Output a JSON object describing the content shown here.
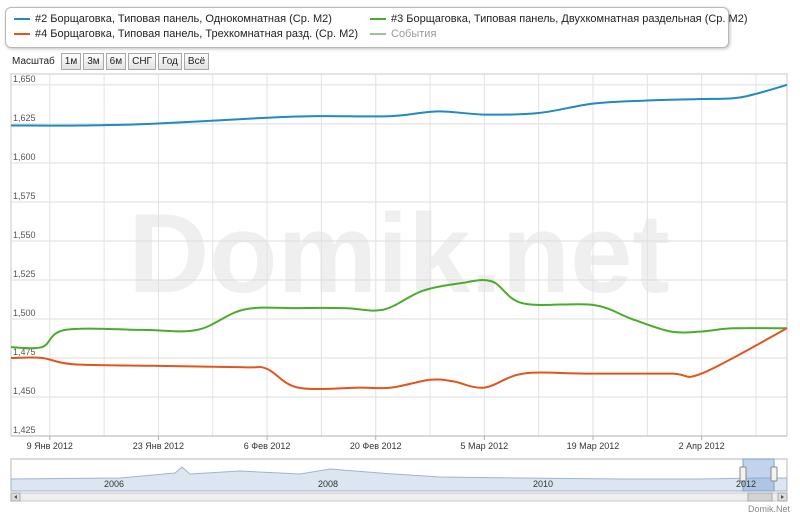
{
  "legend": {
    "items": [
      {
        "label": "#2 Борщаговка, Типовая панель, Однокомнатная (Ср. М2)",
        "color": "#1f8bc0"
      },
      {
        "label": "#3 Борщаговка, Типовая панель, Двухкомнатная раздельная (Ср. М2)",
        "color": "#4aac2c"
      },
      {
        "label": "#4 Борщаговка, Типовая панель, Трехкомнатная разд. (Ср. М2)",
        "color": "#e0561d"
      },
      {
        "label": "События",
        "color": "#9bc49b"
      }
    ]
  },
  "zoom": {
    "label": "Масштаб",
    "buttons": [
      "1м",
      "3м",
      "6м",
      "СНГ",
      "Год",
      "Всё"
    ]
  },
  "watermark": "Domik.net",
  "credit": "Domik.Net",
  "chart_data": {
    "type": "line",
    "x_tick_labels": [
      "9 Янв 2012",
      "23 Янв 2012",
      "6 Фев 2012",
      "20 Фев 2012",
      "5 Мар 2012",
      "19 Мар 2012",
      "2 Апр 2012"
    ],
    "y_tick_labels": [
      "1,425",
      "1,450",
      "1,475",
      "1,500",
      "1,525",
      "1,550",
      "1,575",
      "1,600",
      "1,625",
      "1,650"
    ],
    "ylim": [
      1425,
      1657
    ],
    "xlim": [
      "2012-01-04",
      "2012-04-13"
    ],
    "grid": true,
    "series": [
      {
        "name": "#2 Борщаговка, Типовая панель, Однокомнатная (Ср. М2)",
        "color": "#1f8bc0",
        "points": [
          [
            "2012-01-04",
            1624
          ],
          [
            "2012-01-13",
            1624
          ],
          [
            "2012-01-22",
            1625
          ],
          [
            "2012-02-06",
            1629
          ],
          [
            "2012-02-13",
            1630
          ],
          [
            "2012-02-22",
            1630
          ],
          [
            "2012-02-28",
            1633
          ],
          [
            "2012-03-05",
            1631
          ],
          [
            "2012-03-12",
            1632
          ],
          [
            "2012-03-19",
            1638
          ],
          [
            "2012-03-26",
            1640
          ],
          [
            "2012-04-02",
            1641
          ],
          [
            "2012-04-07",
            1642
          ],
          [
            "2012-04-13",
            1650
          ]
        ]
      },
      {
        "name": "#3 Борщаговка, Типовая панель, Двухкомнатная раздельная (Ср. М2)",
        "color": "#4aac2c",
        "points": [
          [
            "2012-01-04",
            1482
          ],
          [
            "2012-01-08",
            1482
          ],
          [
            "2012-01-11",
            1493
          ],
          [
            "2012-01-21",
            1493
          ],
          [
            "2012-01-28",
            1493
          ],
          [
            "2012-02-03",
            1506
          ],
          [
            "2012-02-10",
            1507
          ],
          [
            "2012-02-16",
            1507
          ],
          [
            "2012-02-21",
            1506
          ],
          [
            "2012-02-26",
            1518
          ],
          [
            "2012-03-02",
            1523
          ],
          [
            "2012-03-06",
            1524
          ],
          [
            "2012-03-10",
            1510
          ],
          [
            "2012-03-19",
            1509
          ],
          [
            "2012-03-24",
            1500
          ],
          [
            "2012-03-29",
            1492
          ],
          [
            "2012-04-02",
            1492
          ],
          [
            "2012-04-06",
            1494
          ],
          [
            "2012-04-13",
            1494
          ]
        ]
      },
      {
        "name": "#4 Борщаговка, Типовая панель, Трехкомнатная разд. (Ср. М2)",
        "color": "#e0561d",
        "points": [
          [
            "2012-01-04",
            1475
          ],
          [
            "2012-01-08",
            1475
          ],
          [
            "2012-01-12",
            1471
          ],
          [
            "2012-01-22",
            1470
          ],
          [
            "2012-02-03",
            1469
          ],
          [
            "2012-02-06",
            1468
          ],
          [
            "2012-02-10",
            1456
          ],
          [
            "2012-02-18",
            1456
          ],
          [
            "2012-02-22",
            1456
          ],
          [
            "2012-02-27",
            1461
          ],
          [
            "2012-03-01",
            1460
          ],
          [
            "2012-03-05",
            1456
          ],
          [
            "2012-03-10",
            1465
          ],
          [
            "2012-03-18",
            1465
          ],
          [
            "2012-03-29",
            1465
          ],
          [
            "2012-04-02",
            1465
          ],
          [
            "2012-04-13",
            1494
          ]
        ]
      }
    ],
    "navigator": {
      "year_labels": [
        "2006",
        "2008",
        "2010",
        "2012"
      ]
    }
  }
}
